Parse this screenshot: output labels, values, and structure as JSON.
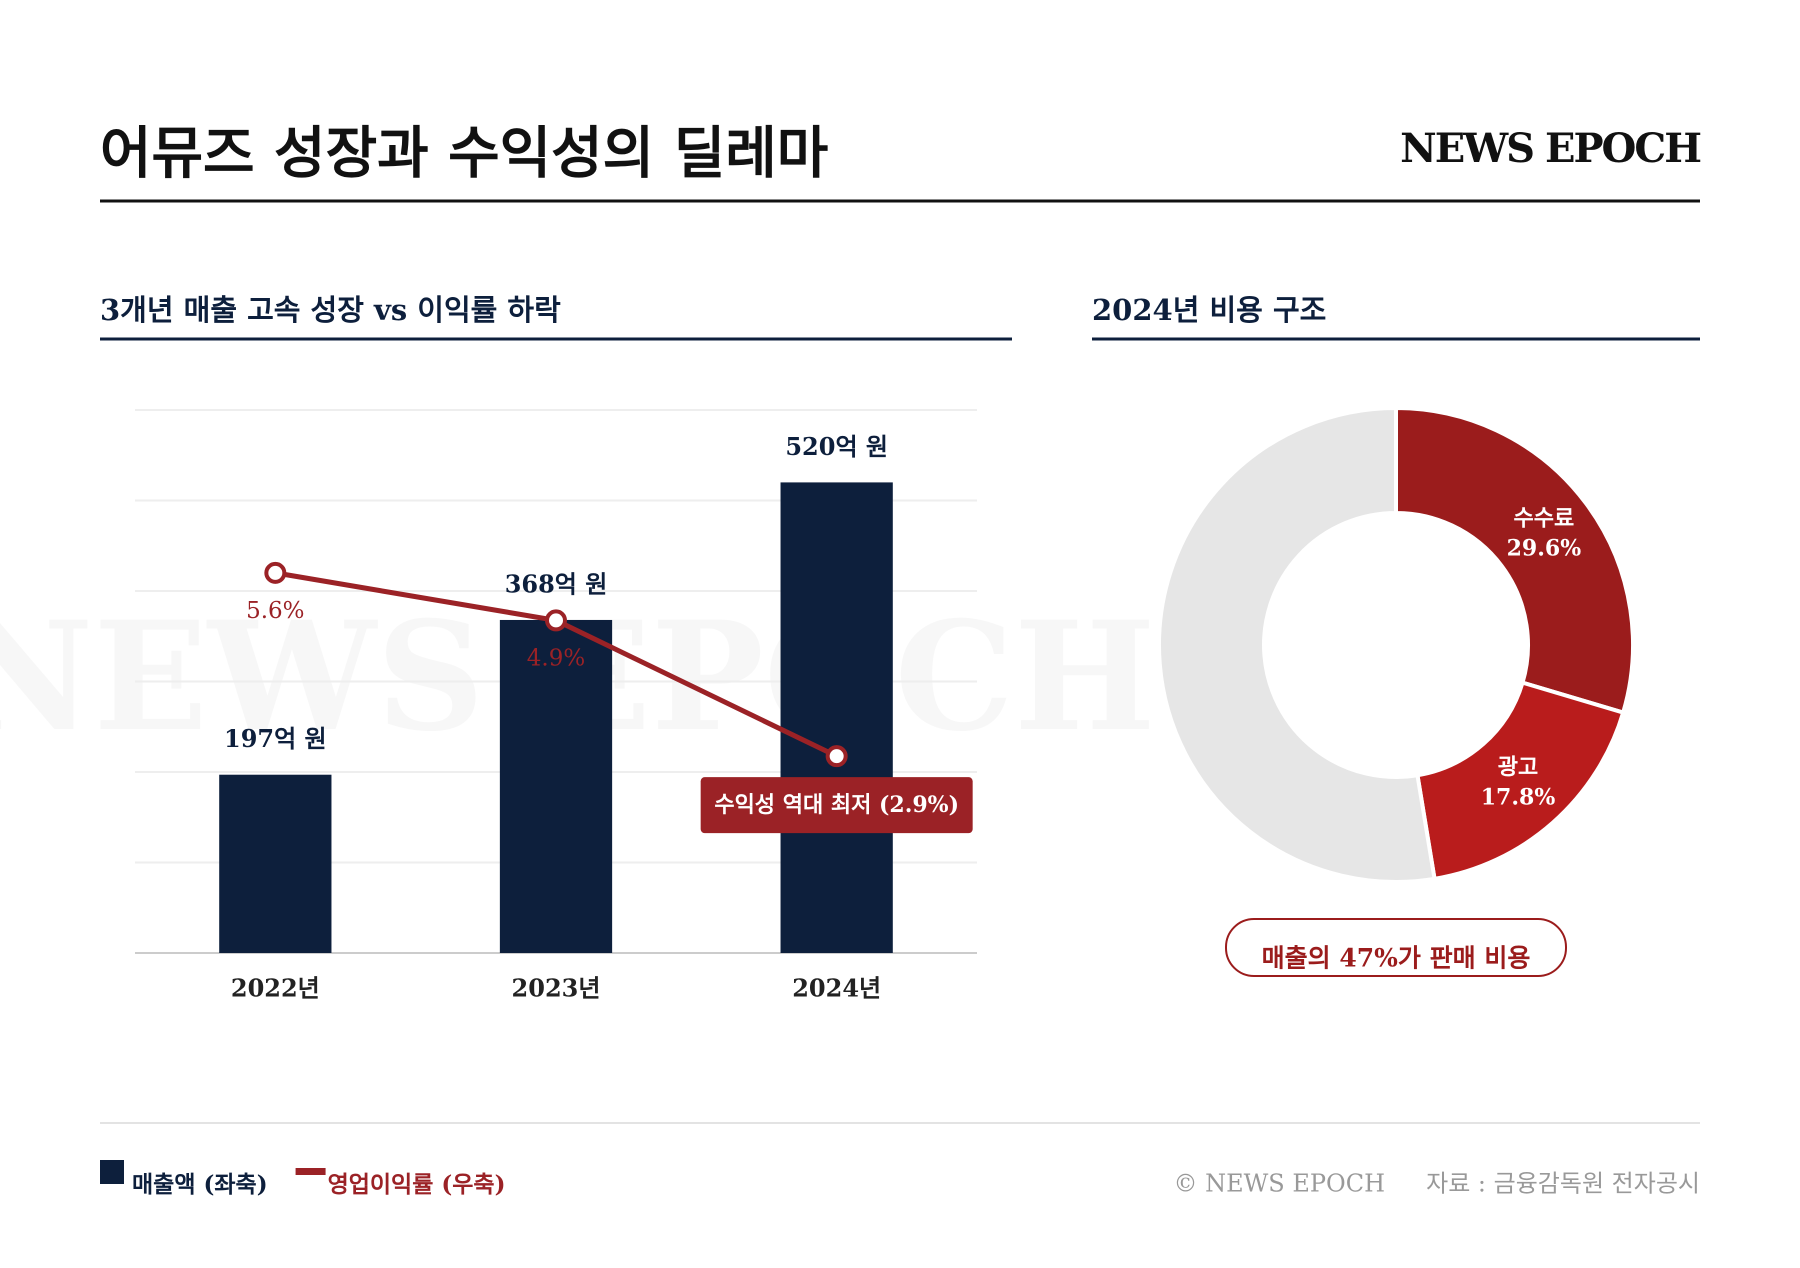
{
  "header": {
    "title": "어뮤즈 성장과 수익성의 딜레마",
    "brand": "NEWS EPOCH"
  },
  "watermark": "NEWS EPOCH",
  "chart_data": [
    {
      "type": "bar-line",
      "title": "3개년 매출 고속 성장 vs 이익률 하락",
      "categories": [
        "2022년",
        "2023년",
        "2024년"
      ],
      "series": [
        {
          "name": "매출액 (좌축)",
          "color": "#0d1f3c",
          "values": [
            197,
            368,
            520
          ],
          "value_labels": [
            "197억 원",
            "368억 원",
            "520억 원"
          ]
        },
        {
          "name": "영업이익률 (우축)",
          "color": "#9b2226",
          "axis": "y2",
          "values": [
            5.6,
            4.9,
            2.9
          ],
          "value_labels": [
            "5.6%",
            "4.9%",
            "수익성 역대 최저 (2.9%)"
          ]
        }
      ],
      "ylim": [
        0,
        600
      ],
      "yticks": [
        0,
        100,
        200,
        300,
        400,
        500,
        600
      ],
      "y2lim": [
        0,
        8
      ],
      "grid": true
    },
    {
      "type": "donut",
      "title": "2024년 비용 구조",
      "categories": [
        "수수료",
        "광고",
        null
      ],
      "values": [
        29.6,
        17.8,
        52.6
      ],
      "value_labels": [
        "29.6%",
        "17.8%",
        null
      ],
      "colors": [
        "#9b1c1c",
        "#b91c1c",
        "#e6e6e6"
      ],
      "annotation": "매출의 47%가 판매 비용"
    }
  ],
  "footer": {
    "copyright": "© NEWS EPOCH",
    "source": "자료 : 금융감독원 전자공시"
  }
}
